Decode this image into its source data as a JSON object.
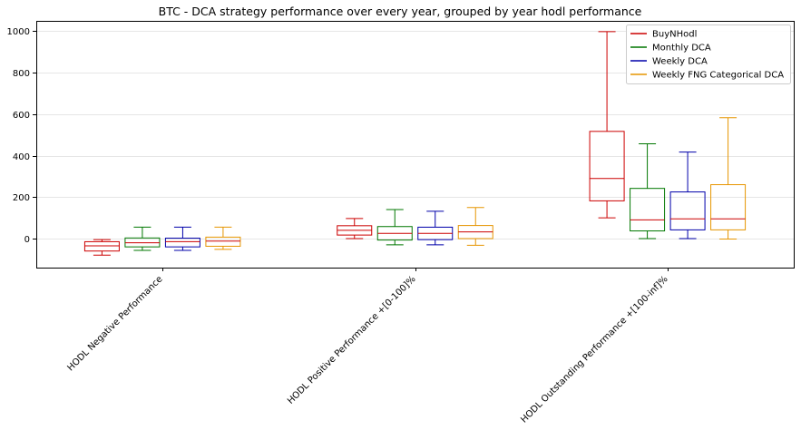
{
  "chart_data": {
    "type": "box",
    "title": "BTC - DCA strategy performance over every year, grouped by year hodl performance",
    "categories": [
      "HODL Negative Performance",
      "HODL Positive Performance +[0-100]%",
      "HODL Outstanding Performance +[100-inf]%"
    ],
    "yticks": [
      0,
      200,
      400,
      600,
      800,
      1000
    ],
    "ylim": [
      -140,
      1050
    ],
    "grid": "horizontal",
    "legend_position": "top-right",
    "series": [
      {
        "name": "BuyNHodl",
        "color": "#cc0000",
        "boxes": [
          {
            "whislo": -80,
            "q1": -60,
            "med": -35,
            "q3": -15,
            "whishi": -5
          },
          {
            "whislo": 0,
            "q1": 17,
            "med": 40,
            "q3": 62,
            "whishi": 97
          },
          {
            "whislo": 100,
            "q1": 182,
            "med": 290,
            "q3": 517,
            "whishi": 998
          }
        ]
      },
      {
        "name": "Monthly DCA",
        "color": "#007700",
        "boxes": [
          {
            "whislo": -57,
            "q1": -40,
            "med": -20,
            "q3": 3,
            "whishi": 55
          },
          {
            "whislo": -30,
            "q1": -7,
            "med": 25,
            "q3": 58,
            "whishi": 140
          },
          {
            "whislo": 0,
            "q1": 37,
            "med": 90,
            "q3": 242,
            "whishi": 457
          }
        ]
      },
      {
        "name": "Weekly DCA",
        "color": "#0000aa",
        "boxes": [
          {
            "whislo": -57,
            "q1": -40,
            "med": -15,
            "q3": 2,
            "whishi": 55
          },
          {
            "whislo": -30,
            "q1": -5,
            "med": 25,
            "q3": 55,
            "whishi": 132
          },
          {
            "whislo": 0,
            "q1": 42,
            "med": 95,
            "q3": 225,
            "whishi": 417
          }
        ]
      },
      {
        "name": "Weekly FNG Categorical DCA",
        "color": "#e69500",
        "boxes": [
          {
            "whislo": -52,
            "q1": -37,
            "med": -12,
            "q3": 7,
            "whishi": 55
          },
          {
            "whislo": -32,
            "q1": 0,
            "med": 32,
            "q3": 63,
            "whishi": 150
          },
          {
            "whislo": -2,
            "q1": 42,
            "med": 95,
            "q3": 260,
            "whishi": 583
          }
        ]
      }
    ]
  }
}
